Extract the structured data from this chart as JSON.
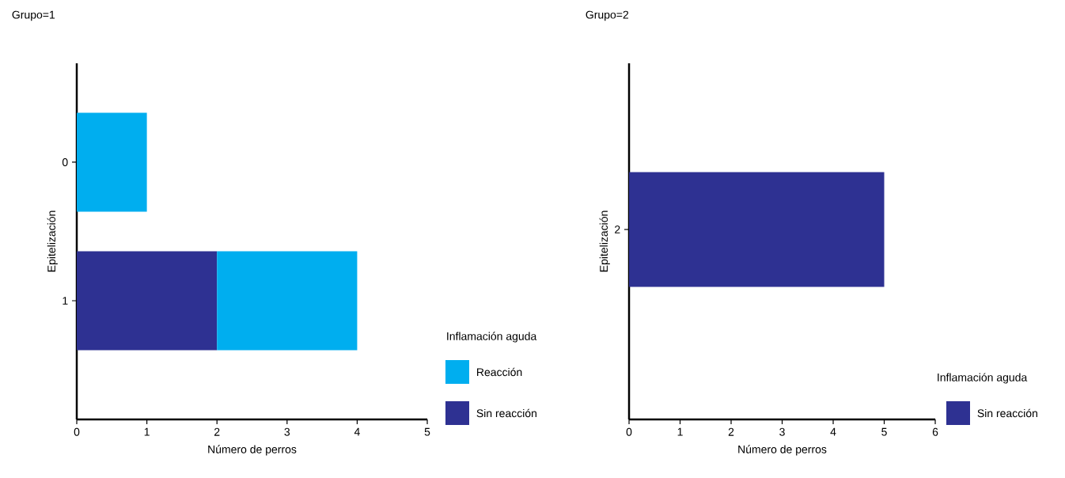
{
  "chart_data": [
    {
      "type": "bar",
      "orientation": "horizontal",
      "stacked": true,
      "title": "Grupo=1",
      "xlabel": "Número de perros",
      "ylabel": "Epitelización",
      "legend_title": "Inflamación aguda",
      "legend": "bottom right",
      "categories": [
        "0",
        "1"
      ],
      "xlim": [
        0,
        5
      ],
      "xticks": [
        0,
        1,
        2,
        3,
        4,
        5
      ],
      "series": [
        {
          "name": "Sin reacción",
          "color": "#2e3192",
          "values": [
            null,
            2
          ]
        },
        {
          "name": "Reacción",
          "color": "#00aeef",
          "values": [
            1,
            2
          ]
        }
      ]
    },
    {
      "type": "bar",
      "orientation": "horizontal",
      "stacked": true,
      "title": "Grupo=2",
      "xlabel": "Número de perros",
      "ylabel": "Epitelización",
      "legend_title": "Inflamación aguda",
      "legend": "bottom right",
      "categories": [
        "2"
      ],
      "xlim": [
        0,
        6
      ],
      "xticks": [
        0,
        1,
        2,
        3,
        4,
        5,
        6
      ],
      "series": [
        {
          "name": "Sin reacción",
          "color": "#2e3192",
          "values": [
            5
          ]
        }
      ]
    }
  ]
}
